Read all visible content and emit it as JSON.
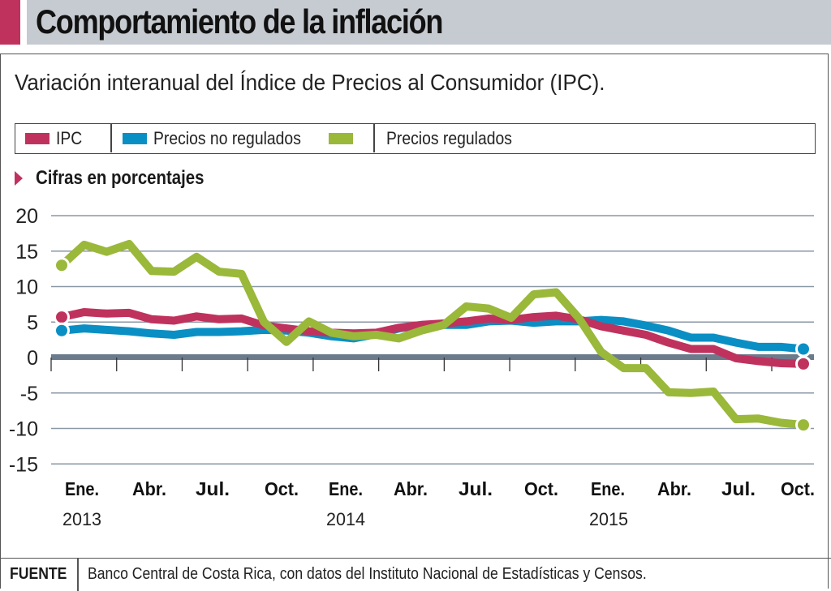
{
  "header": {
    "title": "Comportamiento de la inflación",
    "subtitle": "Variación interanual del Índice de Precios al Consumidor (IPC).",
    "units_note": "Cifras en porcentajes",
    "accent_color": "#c0325e"
  },
  "legend": {
    "items": [
      {
        "label": "IPC",
        "color": "#c0325e"
      },
      {
        "label": "Precios no regulados",
        "color": "#0a8fc4"
      },
      {
        "label": "Precios regulados",
        "color": "#9ab83a"
      }
    ]
  },
  "footer": {
    "label": "FUENTE",
    "text": "Banco Central de Costa Rica, con datos del Instituto Nacional de Estadísticas y Censos."
  },
  "chart_data": {
    "type": "line",
    "title": "Comportamiento de la inflación",
    "subtitle": "Variación interanual del Índice de Precios al Consumidor (IPC).",
    "xlabel": "",
    "ylabel": "Cifras en porcentajes",
    "ylim": [
      -15,
      20
    ],
    "yticks": [
      20,
      15,
      10,
      5,
      0,
      -5,
      -10,
      -15
    ],
    "grid": true,
    "legend_position": "top",
    "x": [
      "2013-01",
      "2013-02",
      "2013-03",
      "2013-04",
      "2013-05",
      "2013-06",
      "2013-07",
      "2013-08",
      "2013-09",
      "2013-10",
      "2013-11",
      "2013-12",
      "2014-01",
      "2014-02",
      "2014-03",
      "2014-04",
      "2014-05",
      "2014-06",
      "2014-07",
      "2014-08",
      "2014-09",
      "2014-10",
      "2014-11",
      "2014-12",
      "2015-01",
      "2015-02",
      "2015-03",
      "2015-04",
      "2015-05",
      "2015-06",
      "2015-07",
      "2015-08",
      "2015-09",
      "2015-10"
    ],
    "x_tick_labels": [
      "Ene.",
      "Abr.",
      "Jul.",
      "Oct.",
      "Ene.",
      "Abr.",
      "Jul.",
      "Oct.",
      "Ene.",
      "Abr.",
      "Jul.",
      "Oct."
    ],
    "x_tick_month_index": [
      0,
      3,
      6,
      9,
      12,
      15,
      18,
      21,
      24,
      27,
      30,
      33
    ],
    "year_labels": [
      {
        "label": "2013",
        "month_index": 0
      },
      {
        "label": "2014",
        "month_index": 12
      },
      {
        "label": "2015",
        "month_index": 24
      }
    ],
    "series": [
      {
        "name": "IPC",
        "color": "#c0325e",
        "values": [
          5.7,
          6.4,
          6.2,
          6.3,
          5.4,
          5.2,
          5.8,
          5.4,
          5.5,
          4.5,
          4.1,
          3.7,
          3.5,
          3.4,
          3.5,
          4.2,
          4.6,
          4.8,
          5.1,
          5.5,
          5.3,
          5.7,
          5.9,
          5.4,
          4.4,
          3.8,
          3.2,
          2.1,
          1.2,
          1.2,
          -0.1,
          -0.5,
          -0.8,
          -0.9
        ]
      },
      {
        "name": "Precios no regulados",
        "color": "#0a8fc4",
        "values": [
          3.8,
          4.1,
          3.9,
          3.7,
          3.4,
          3.2,
          3.6,
          3.6,
          3.7,
          3.9,
          3.8,
          3.5,
          3.0,
          2.7,
          3.3,
          4.1,
          4.5,
          4.6,
          4.6,
          5.1,
          5.2,
          4.9,
          5.1,
          5.1,
          5.3,
          5.1,
          4.5,
          3.8,
          2.8,
          2.8,
          2.1,
          1.5,
          1.5,
          1.2
        ]
      },
      {
        "name": "Precios regulados",
        "color": "#9ab83a",
        "values": [
          13.0,
          15.9,
          14.9,
          16.0,
          12.2,
          12.1,
          14.2,
          12.1,
          11.8,
          5.0,
          2.2,
          5.1,
          3.5,
          3.0,
          3.2,
          2.7,
          3.8,
          4.6,
          7.2,
          6.9,
          5.6,
          8.9,
          9.2,
          5.6,
          0.8,
          -1.5,
          -1.5,
          -4.9,
          -5.0,
          -4.8,
          -8.7,
          -8.6,
          -9.2,
          -9.5
        ]
      }
    ]
  }
}
